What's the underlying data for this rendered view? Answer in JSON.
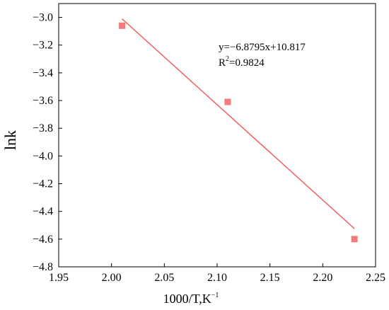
{
  "chart_data": {
    "type": "scatter",
    "xlabel": "1000/T,K",
    "xlabel_sup": "−1",
    "ylabel": "lnk",
    "xlim": [
      1.95,
      2.25
    ],
    "ylim": [
      -4.8,
      -2.9
    ],
    "xticks": [
      1.95,
      2.0,
      2.05,
      2.1,
      2.15,
      2.2,
      2.25
    ],
    "xtick_labels": [
      "1.95",
      "2.00",
      "2.05",
      "2.10",
      "2.15",
      "2.20",
      "2.25"
    ],
    "yticks": [
      -3.0,
      -3.2,
      -3.4,
      -3.6,
      -3.8,
      -4.0,
      -4.2,
      -4.4,
      -4.6,
      -4.8
    ],
    "ytick_labels": [
      "−3.0",
      "−3.2",
      "−3.4",
      "−3.6",
      "−3.8",
      "−4.0",
      "−4.2",
      "−4.4",
      "−4.6",
      "−4.8"
    ],
    "points": [
      {
        "x": 2.01,
        "y": -3.06
      },
      {
        "x": 2.11,
        "y": -3.61
      },
      {
        "x": 2.23,
        "y": -4.6
      }
    ],
    "fit": {
      "slope": -6.8795,
      "intercept": 10.817,
      "x_range": [
        2.01,
        2.23
      ]
    },
    "annotation": {
      "equation": "y=−6.8795x+10.817",
      "r2_prefix": "R",
      "r2_sup": "2",
      "r2_value": "=0.9824"
    },
    "colors": {
      "series": "#f47a7a",
      "fit_line": "#f06060",
      "axes": "#000000"
    },
    "grid": false,
    "legend": "none"
  }
}
